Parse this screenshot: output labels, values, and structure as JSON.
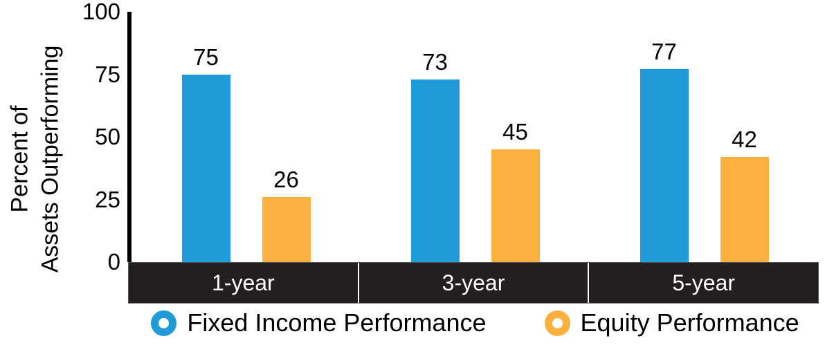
{
  "chart_data": {
    "type": "bar",
    "title": "",
    "categories": [
      "1-year",
      "3-year",
      "5-year"
    ],
    "series": [
      {
        "name": "Fixed Income Performance",
        "color": "#1F9BD7",
        "values": [
          75,
          73,
          77
        ]
      },
      {
        "name": "Equity Performance",
        "color": "#FBB040",
        "values": [
          26,
          45,
          42
        ]
      }
    ],
    "ylabel": "Percent of Assets Outperforming",
    "ylabel_lines": [
      "Percent of",
      "Assets Outperforming"
    ],
    "yticks": [
      0,
      25,
      50,
      75,
      100
    ],
    "ylim": [
      0,
      100
    ],
    "grid": false,
    "bar_value_labels": true,
    "legend_position": "bottom",
    "colors": {
      "axis": "#000000",
      "band_background": "#231F20",
      "band_border": "#58595B",
      "band_text": "#FFFFFF",
      "band_divider": "#FFFFFF",
      "value_label": "#000000"
    }
  }
}
